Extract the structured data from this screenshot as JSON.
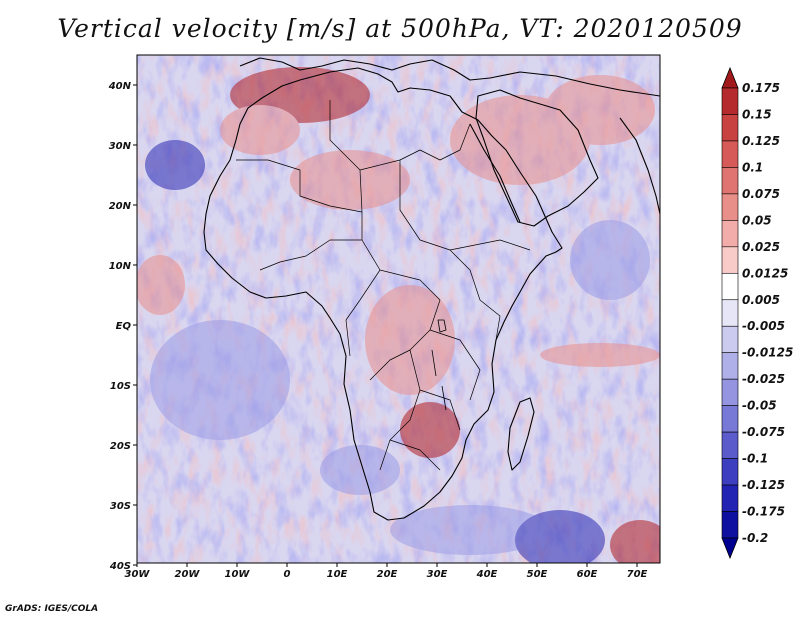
{
  "title": "Vertical velocity [m/s] at 500hPa, VT: 2020120509",
  "credit": "GrADS: IGES/COLA",
  "map": {
    "lon_ticks": [
      "30W",
      "20W",
      "10W",
      "0",
      "10E",
      "20E",
      "30E",
      "40E",
      "50E",
      "60E",
      "70E"
    ],
    "lat_ticks": [
      "40N",
      "30N",
      "20N",
      "10N",
      "EQ",
      "10S",
      "20S",
      "30S",
      "40S"
    ],
    "field_colors": {
      "strong_up": "#b01f24",
      "up": "#e8908e",
      "neutral": "#f4f1f6",
      "down": "#9c9ce6",
      "strong_down": "#2b2bb3"
    },
    "coastline_color": "#000000"
  },
  "colorbar": {
    "levels": [
      "0.175",
      "0.15",
      "0.125",
      "0.1",
      "0.075",
      "0.05",
      "0.025",
      "0.0125",
      "0.005",
      "-0.005",
      "-0.0125",
      "-0.025",
      "-0.05",
      "-0.075",
      "-0.1",
      "-0.125",
      "-0.175",
      "-0.2"
    ],
    "colors": [
      "#a01a1c",
      "#b52a2c",
      "#c94242",
      "#d65a58",
      "#e07470",
      "#e98f8a",
      "#f2acaa",
      "#f8cbc9",
      "#ffffff",
      "#e6e6f6",
      "#cbcbef",
      "#b0b0e8",
      "#9494e0",
      "#7878d6",
      "#5b5bcb",
      "#3e3ec0",
      "#2323b3",
      "#1010a0",
      "#000090"
    ]
  }
}
